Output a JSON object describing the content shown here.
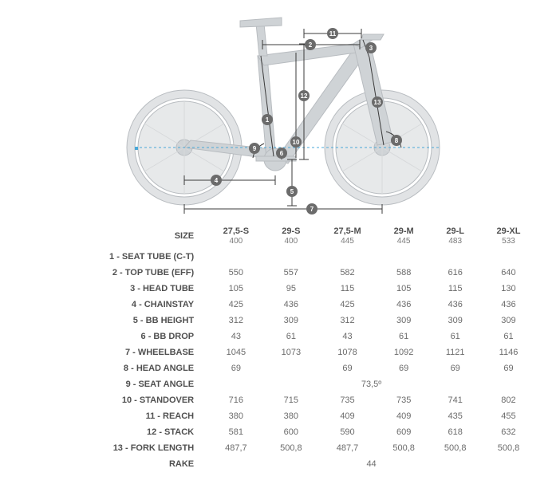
{
  "diagram": {
    "bike_color": "#cfd3d6",
    "outline_color": "#b8bcc0",
    "marker_bg": "#6b6b6b",
    "marker_fg": "#ffffff",
    "dim_line_color": "#3b3b3b",
    "ref_line_color": "#4aa8d8",
    "labels": [
      "1",
      "2",
      "3",
      "4",
      "5",
      "6",
      "7",
      "8",
      "9",
      "10",
      "11",
      "12",
      "13"
    ]
  },
  "table": {
    "header_label": "SIZE",
    "sizes": [
      {
        "name": "27,5-S",
        "seat_tube": "400"
      },
      {
        "name": "29-S",
        "seat_tube": "400"
      },
      {
        "name": "27,5-M",
        "seat_tube": "445"
      },
      {
        "name": "29-M",
        "seat_tube": "445"
      },
      {
        "name": "29-L",
        "seat_tube": "483"
      },
      {
        "name": "29-XL",
        "seat_tube": "533"
      }
    ],
    "rows": [
      {
        "label": "1 - SEAT TUBE (C-T)"
      },
      {
        "label": "2 - TOP TUBE (EFF)",
        "values": [
          "550",
          "557",
          "582",
          "588",
          "616",
          "640"
        ]
      },
      {
        "label": "3 - HEAD TUBE",
        "values": [
          "105",
          "95",
          "115",
          "105",
          "115",
          "130"
        ]
      },
      {
        "label": "4 - CHAINSTAY",
        "values": [
          "425",
          "436",
          "425",
          "436",
          "436",
          "436"
        ]
      },
      {
        "label": "5 - BB HEIGHT",
        "values": [
          "312",
          "309",
          "312",
          "309",
          "309",
          "309"
        ]
      },
      {
        "label": "6 - BB DROP",
        "values": [
          "43",
          "61",
          "43",
          "61",
          "61",
          "61"
        ]
      },
      {
        "label": "7 - WHEELBASE",
        "values": [
          "1045",
          "1073",
          "1078",
          "1092",
          "1121",
          "1146"
        ]
      },
      {
        "label": "8 - HEAD ANGLE",
        "values": [
          "69",
          "",
          "69",
          "69",
          "69",
          "69"
        ]
      },
      {
        "label": "9 - SEAT ANGLE",
        "span_value": "73,5º"
      },
      {
        "label": "10 - STANDOVER",
        "values": [
          "716",
          "715",
          "735",
          "735",
          "741",
          "802"
        ]
      },
      {
        "label": "11 - REACH",
        "values": [
          "380",
          "380",
          "409",
          "409",
          "435",
          "455"
        ]
      },
      {
        "label": "12 - STACK",
        "values": [
          "581",
          "600",
          "590",
          "609",
          "618",
          "632"
        ]
      },
      {
        "label": "13 - FORK LENGTH",
        "values": [
          "487,7",
          "500,8",
          "487,7",
          "500,8",
          "500,8",
          "500,8"
        ]
      },
      {
        "label": "RAKE",
        "span_value": "44"
      }
    ]
  }
}
